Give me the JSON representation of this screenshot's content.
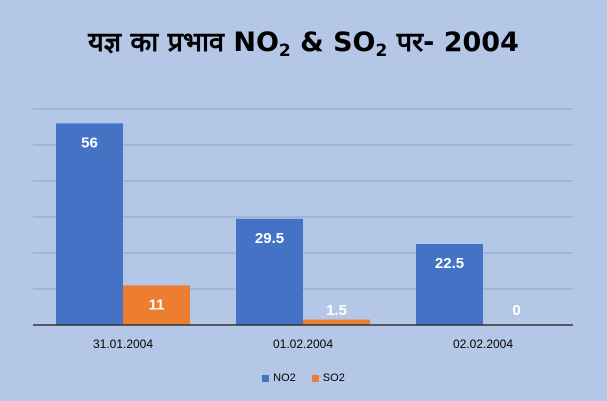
{
  "chart_data": {
    "type": "bar",
    "title_parts": [
      "यज्ञ  का  प्रभाव NO",
      "2",
      " & SO",
      "2",
      " पर- 2004"
    ],
    "categories": [
      "31.01.2004",
      "01.02.2004",
      "02.02.2004"
    ],
    "series": [
      {
        "name": "NO2",
        "values": [
          56,
          29.5,
          22.5
        ]
      },
      {
        "name": "SO2",
        "values": [
          11,
          1.5,
          0
        ]
      }
    ],
    "data_labels": [
      [
        "56",
        "29.5",
        "22.5"
      ],
      [
        "11",
        "1.5",
        "0"
      ]
    ],
    "ylim": [
      0,
      60
    ],
    "grid": true,
    "legend_position": "bottom",
    "colors": {
      "NO2": "#4472c4",
      "SO2": "#ed7d31",
      "background": "#b4c7e7",
      "grid": "#8fa6c8",
      "axis": "#333333"
    }
  }
}
